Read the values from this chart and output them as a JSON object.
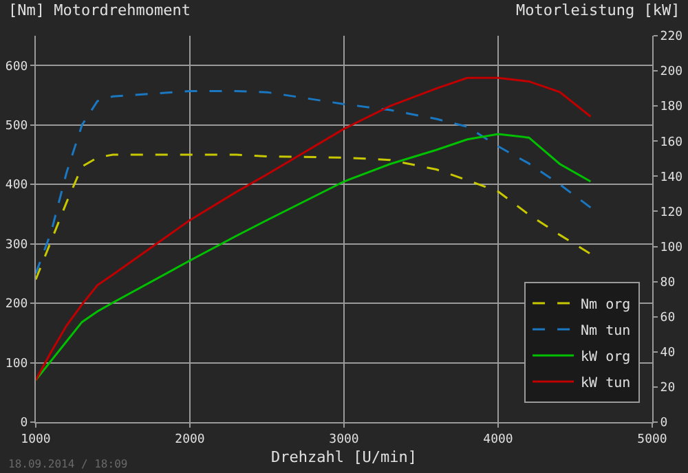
{
  "chart_data": {
    "type": "line",
    "ylabel": "[Nm] Motordrehmoment",
    "y2label": "Motorleistung [kW]",
    "xlabel": "Drehzahl [U/min]",
    "annotations": [
      "18.09.2014 / 18:09"
    ],
    "x": [
      1000,
      1100,
      1200,
      1300,
      1400,
      1500,
      2000,
      2300,
      2500,
      3000,
      3300,
      3600,
      3800,
      4000,
      4200,
      4400,
      4600
    ],
    "xlim": [
      1000,
      5000
    ],
    "xticks": [
      1000,
      2000,
      3000,
      4000,
      5000
    ],
    "ylim": [
      0,
      650
    ],
    "yticks": [
      0,
      100,
      200,
      300,
      400,
      500,
      600
    ],
    "y2lim": [
      0,
      220
    ],
    "y2ticks": [
      0,
      20,
      40,
      60,
      80,
      100,
      120,
      140,
      160,
      180,
      200,
      220
    ],
    "grid": true,
    "legend": "bottom right",
    "marker": "none",
    "series": [
      {
        "name": "Nm org",
        "color": "#c8c800",
        "line_style": "dashed",
        "values": [
          240,
          305,
          370,
          430,
          445,
          450,
          450,
          450,
          447,
          445,
          441,
          425,
          407,
          388,
          349,
          315,
          283
        ]
      },
      {
        "name": "Nm tun",
        "color": "#1a78c2",
        "line_style": "dashed",
        "values": [
          250,
          320,
          420,
          500,
          540,
          548,
          557,
          557,
          555,
          535,
          525,
          510,
          497,
          464,
          435,
          400,
          361
        ]
      },
      {
        "name": "kW org",
        "color": "#00c000",
        "line_style": "solid",
        "axis": "y2",
        "values": [
          24,
          35,
          46,
          57,
          63,
          68,
          92,
          106,
          115,
          137,
          147,
          155,
          161,
          164,
          162,
          147,
          137
        ]
      },
      {
        "name": "kW tun",
        "color": "#c00000",
        "line_style": "solid",
        "axis": "y2",
        "values": [
          24,
          40,
          55,
          67,
          78,
          84,
          115,
          131,
          141,
          167,
          180,
          190,
          196,
          196,
          194,
          188,
          174
        ]
      }
    ]
  }
}
